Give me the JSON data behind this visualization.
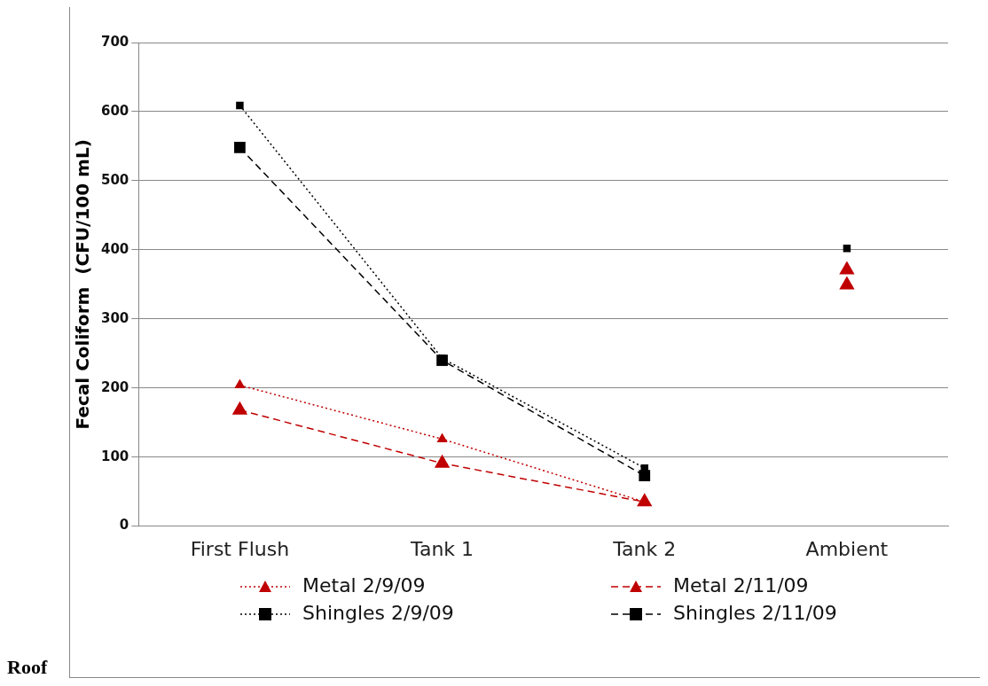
{
  "chart_data": {
    "type": "line",
    "ylabel": "Fecal Coliform  (CFU/100 mL)",
    "categories": [
      "First Flush",
      "Tank 1",
      "Tank 2",
      "Ambient"
    ],
    "ylim": [
      0,
      700
    ],
    "yticks": [
      0,
      100,
      200,
      300,
      400,
      500,
      600,
      700
    ],
    "grid": "y",
    "legend": "bottom",
    "series": [
      {
        "name": "Metal  2/9/09",
        "color": "#c00000",
        "marker": "triangle",
        "line_style": "dotted",
        "values": [
          204,
          126,
          35,
          null
        ]
      },
      {
        "name": "Metal  2/11/09",
        "color": "#c00000",
        "marker": "triangle",
        "line_style": "dashed",
        "values": [
          168,
          91,
          35,
          null
        ]
      },
      {
        "name": "Shingles  2/9/09",
        "color": "#000000",
        "marker": "square",
        "line_style": "dotted",
        "values": [
          609,
          243,
          84,
          null
        ]
      },
      {
        "name": "Shingles  2/11/09",
        "color": "#000000",
        "marker": "square",
        "line_style": "dashed",
        "values": [
          548,
          240,
          73,
          null
        ]
      },
      {
        "type": "scatter",
        "color": "#000000",
        "marker": "square",
        "x": [
          "Ambient"
        ],
        "values": [
          402
        ]
      },
      {
        "type": "scatter",
        "color": "#c00000",
        "marker": "triangle",
        "x": [
          "Ambient",
          "Ambient"
        ],
        "values": [
          371,
          349
        ]
      }
    ],
    "annotations": [
      "Roof"
    ]
  }
}
